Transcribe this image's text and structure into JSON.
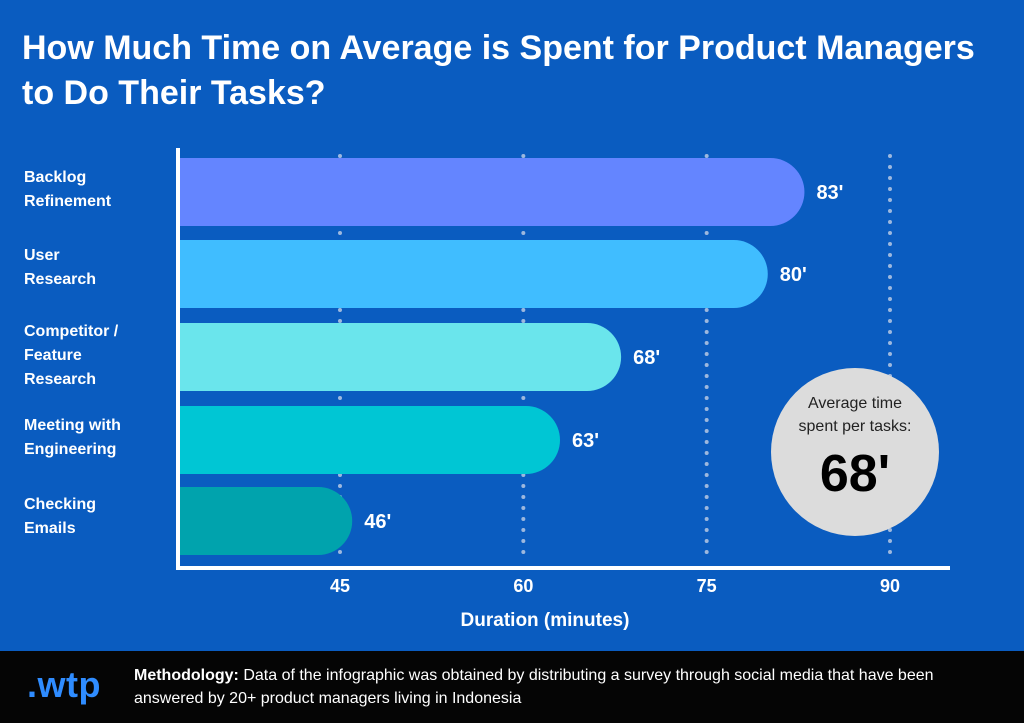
{
  "title": "How Much Time on Average is Spent for Product Managers to Do Their Tasks?",
  "chart_data": {
    "type": "bar",
    "orientation": "horizontal",
    "categories": [
      "Backlog\nRefinement",
      "User\nResearch",
      "Competitor /\nFeature\nResearch",
      "Meeting with\nEngineering",
      "Checking\nEmails"
    ],
    "values": [
      83,
      80,
      68,
      63,
      46
    ],
    "value_labels": [
      "83'",
      "80'",
      "68'",
      "63'",
      "46'"
    ],
    "xlabel": "Duration (minutes)",
    "ylabel": "",
    "xticks": [
      45,
      60,
      75,
      90
    ],
    "xlim": [
      32,
      95
    ],
    "grid": true,
    "colors": [
      "#6485ff",
      "#40bdff",
      "#6ae5ec",
      "#00c6d4",
      "#00a3ad"
    ]
  },
  "average": {
    "label": "Average time\nspent per tasks:",
    "value": "68'"
  },
  "footer": {
    "logo": ".wtp",
    "methodology_label": "Methodology:",
    "methodology_text": " Data of the infographic was obtained by distributing a survey through social media that have been answered by 20+ product managers living in Indonesia"
  },
  "theme": {
    "background": "#0a5cc0",
    "axis": "#ffffff",
    "grid": "#9db8de",
    "footer": "#050505",
    "logo": "#2f8cff"
  }
}
